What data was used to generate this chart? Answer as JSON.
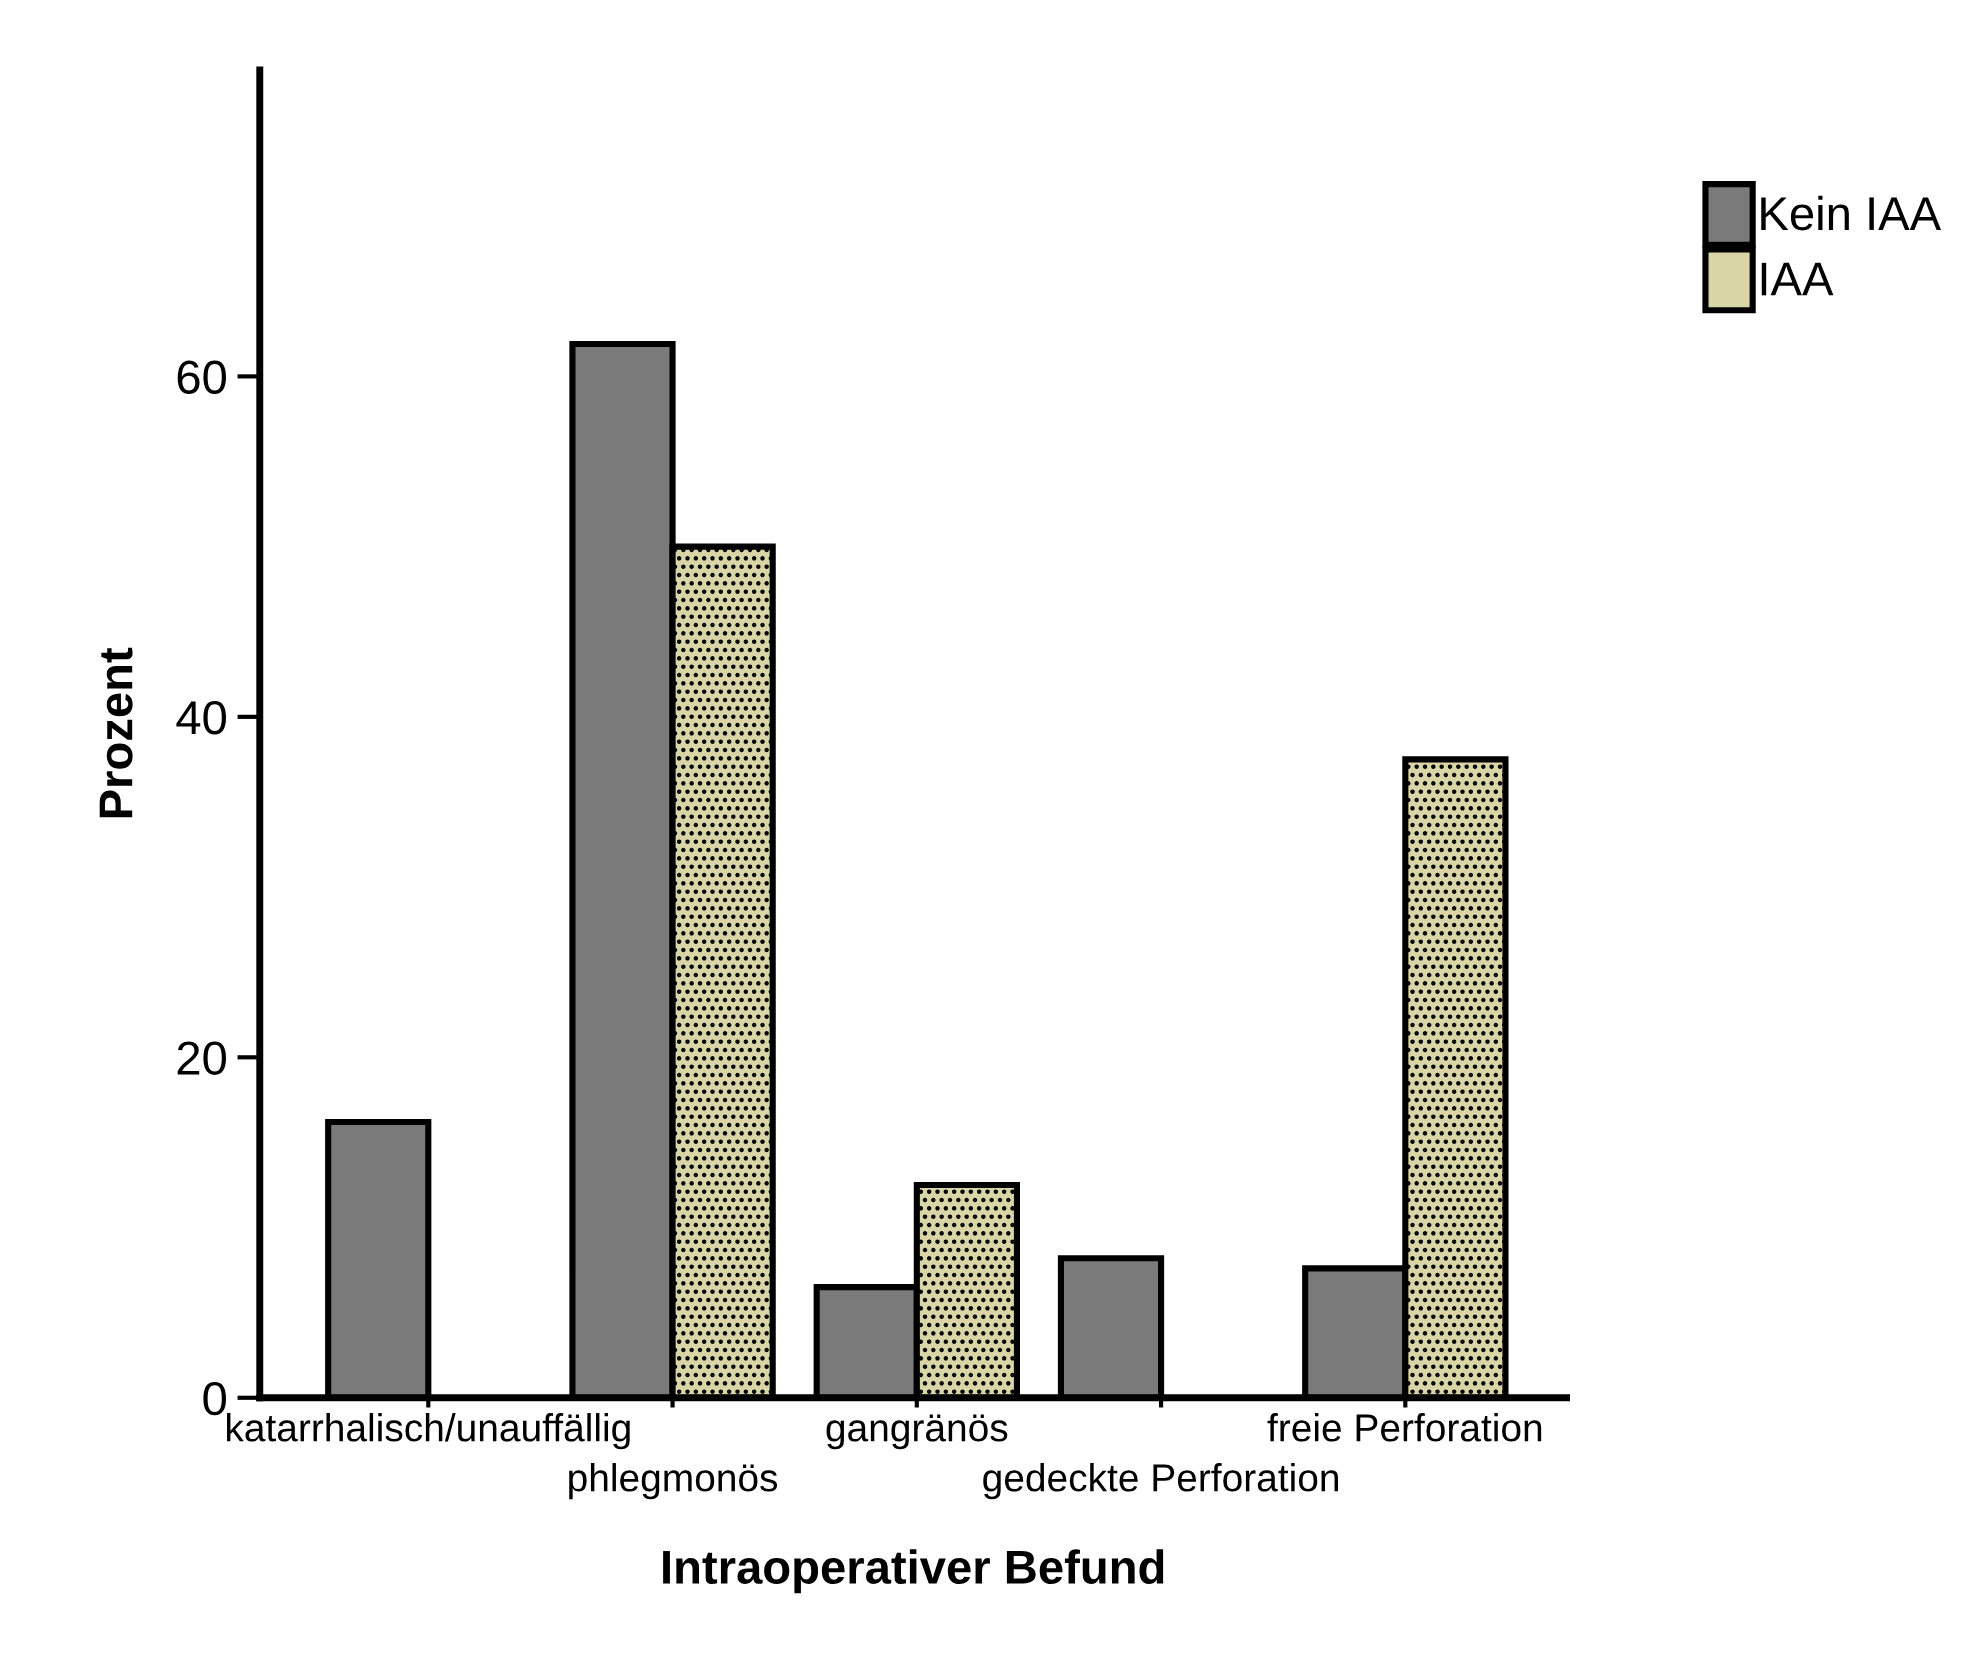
{
  "chart_data": {
    "type": "bar",
    "xlabel": "Intraoperativer Befund",
    "ylabel": "Prozent",
    "categories": [
      "katarrhalisch/unauffällig",
      "phlegmonös",
      "gangränös",
      "gedeckte Perforation",
      "freie Perforation"
    ],
    "series": [
      {
        "name": "Kein IAA",
        "color": "#7a7a7a",
        "values": [
          16.2,
          61.9,
          6.5,
          8.2,
          7.6
        ]
      },
      {
        "name": "IAA",
        "color": "#d9d5a6",
        "values": [
          null,
          50,
          12.5,
          null,
          37.5
        ]
      }
    ],
    "ylim": [
      0,
      78
    ],
    "yticks": [
      0,
      20,
      40,
      60
    ],
    "grid": false,
    "legend": "top right"
  }
}
